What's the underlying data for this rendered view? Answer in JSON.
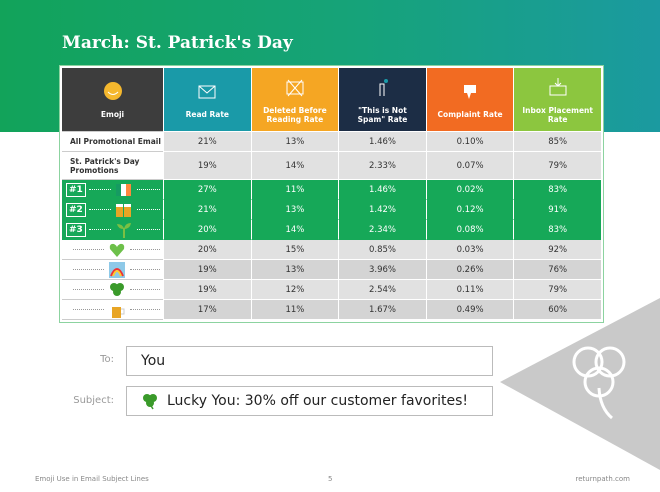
{
  "title": "March: St. Patrick's Day",
  "table": {
    "columns": [
      "Emoji",
      "Read Rate",
      "Deleted Before Reading Rate",
      "\"This is Not Spam\" Rate",
      "Complaint Rate",
      "Inbox Placement Rate"
    ],
    "rows": [
      {
        "label": "All Promotional Email",
        "cells": [
          "21%",
          "13%",
          "1.46%",
          "0.10%",
          "85%"
        ]
      },
      {
        "label": "St. Patrick's Day Promotions",
        "cells": [
          "19%",
          "14%",
          "2.33%",
          "0.07%",
          "79%"
        ]
      },
      {
        "rank": "#1",
        "cells": [
          "27%",
          "11%",
          "1.46%",
          "0.02%",
          "83%"
        ]
      },
      {
        "rank": "#2",
        "cells": [
          "21%",
          "13%",
          "1.42%",
          "0.12%",
          "91%"
        ]
      },
      {
        "rank": "#3",
        "cells": [
          "20%",
          "14%",
          "2.34%",
          "0.08%",
          "83%"
        ]
      },
      {
        "cells": [
          "20%",
          "15%",
          "0.85%",
          "0.03%",
          "92%"
        ]
      },
      {
        "cells": [
          "19%",
          "13%",
          "3.96%",
          "0.26%",
          "76%"
        ]
      },
      {
        "cells": [
          "19%",
          "12%",
          "2.54%",
          "0.11%",
          "79%"
        ]
      },
      {
        "cells": [
          "17%",
          "11%",
          "1.67%",
          "0.49%",
          "60%"
        ]
      }
    ]
  },
  "email": {
    "to_label": "To:",
    "to": "You",
    "subject_label": "Subject:",
    "subject": "Lucky You: 30% off our customer favorites!"
  },
  "footer": {
    "left": "Emoji Use in Email Subject Lines",
    "page": "5",
    "right": "returnpath.com"
  }
}
